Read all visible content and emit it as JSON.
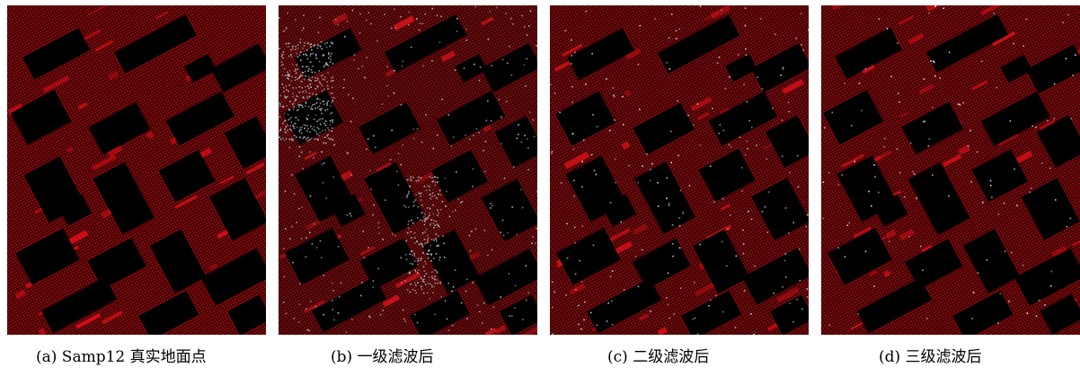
{
  "panels": [
    {
      "id": "a",
      "caption": "(a) Samp12 真实地面点",
      "theme": {
        "base": "#a8070b",
        "accent": "#e8101a",
        "noise": "none"
      }
    },
    {
      "id": "b",
      "caption": "(b)  一级滤波后",
      "theme": {
        "base": "#8f0a0e",
        "accent": "#d9151c",
        "noise": "#b8c4c8"
      }
    },
    {
      "id": "c",
      "caption": "(c)  二级滤波后",
      "theme": {
        "base": "#9c080c",
        "accent": "#e01219",
        "noise": "#d6dadb"
      }
    },
    {
      "id": "d",
      "caption": "(d)  三级滤波后",
      "theme": {
        "base": "#a2070b",
        "accent": "#e3111a",
        "noise": "#e8e8e8"
      }
    }
  ],
  "colors": {
    "background": "#000000",
    "page": "#ffffff"
  }
}
